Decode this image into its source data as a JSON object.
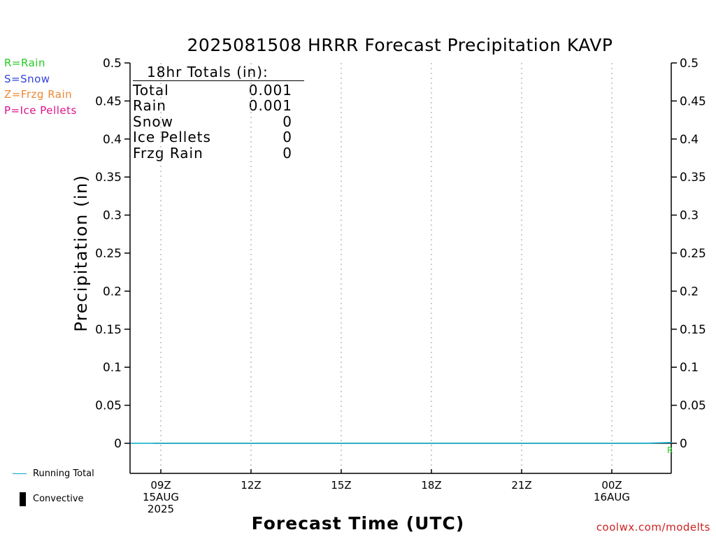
{
  "title": "2025081508 HRRR Forecast Precipitation KAVP",
  "precip_type_legend": [
    {
      "label": "R=Rain",
      "color": "#22cc22"
    },
    {
      "label": "S=Snow",
      "color": "#3344dd"
    },
    {
      "label": "Z=Frzg Rain",
      "color": "#ee8833"
    },
    {
      "label": "P=Ice Pellets",
      "color": "#dd1188"
    }
  ],
  "series_legend": [
    {
      "label": "Running Total",
      "color": "#00aacc",
      "icon": "line-swatch-icon"
    },
    {
      "label": "Convective",
      "color": "#000000",
      "icon": "bar-swatch-icon"
    }
  ],
  "totals": {
    "header": "18hr Totals (in):",
    "rows": [
      {
        "label": "Total",
        "value": "0.001"
      },
      {
        "label": "Rain",
        "value": "0.001"
      },
      {
        "label": "Snow",
        "value": "0"
      },
      {
        "label": "Ice Pellets",
        "value": "0"
      },
      {
        "label": "Frzg Rain",
        "value": "0"
      }
    ]
  },
  "credit": "coolwx.com/modelts",
  "chart_data": {
    "type": "line",
    "title": "2025081508 HRRR Forecast Precipitation KAVP",
    "xlabel": "Forecast Time (UTC)",
    "ylabel": "Precipitation (in)",
    "ylim": [
      -0.04,
      0.5
    ],
    "y_ticks": [
      "0",
      "0.05",
      "0.1",
      "0.15",
      "0.2",
      "0.25",
      "0.3",
      "0.35",
      "0.4",
      "0.45",
      "0.5"
    ],
    "x_range_hours": [
      8,
      26
    ],
    "x_ticks": [
      {
        "hour": 9,
        "lines": [
          "09Z",
          "15AUG",
          "2025"
        ]
      },
      {
        "hour": 12,
        "lines": [
          "12Z"
        ]
      },
      {
        "hour": 15,
        "lines": [
          "15Z"
        ]
      },
      {
        "hour": 18,
        "lines": [
          "18Z"
        ]
      },
      {
        "hour": 21,
        "lines": [
          "21Z"
        ]
      },
      {
        "hour": 24,
        "lines": [
          "00Z",
          "16AUG"
        ]
      }
    ],
    "grid": "vertical dotted",
    "series": [
      {
        "name": "Running Total",
        "color": "#00aacc",
        "x_hours": [
          8,
          9,
          10,
          11,
          12,
          13,
          14,
          15,
          16,
          17,
          18,
          19,
          20,
          21,
          22,
          23,
          24,
          25,
          26
        ],
        "values": [
          0,
          0,
          0,
          0,
          0,
          0,
          0,
          0,
          0,
          0,
          0,
          0,
          0,
          0,
          0,
          0,
          0,
          0,
          0.001
        ]
      }
    ],
    "precip_type_markers": [
      {
        "hour": 26,
        "label": "R",
        "color": "#22cc22"
      }
    ]
  }
}
